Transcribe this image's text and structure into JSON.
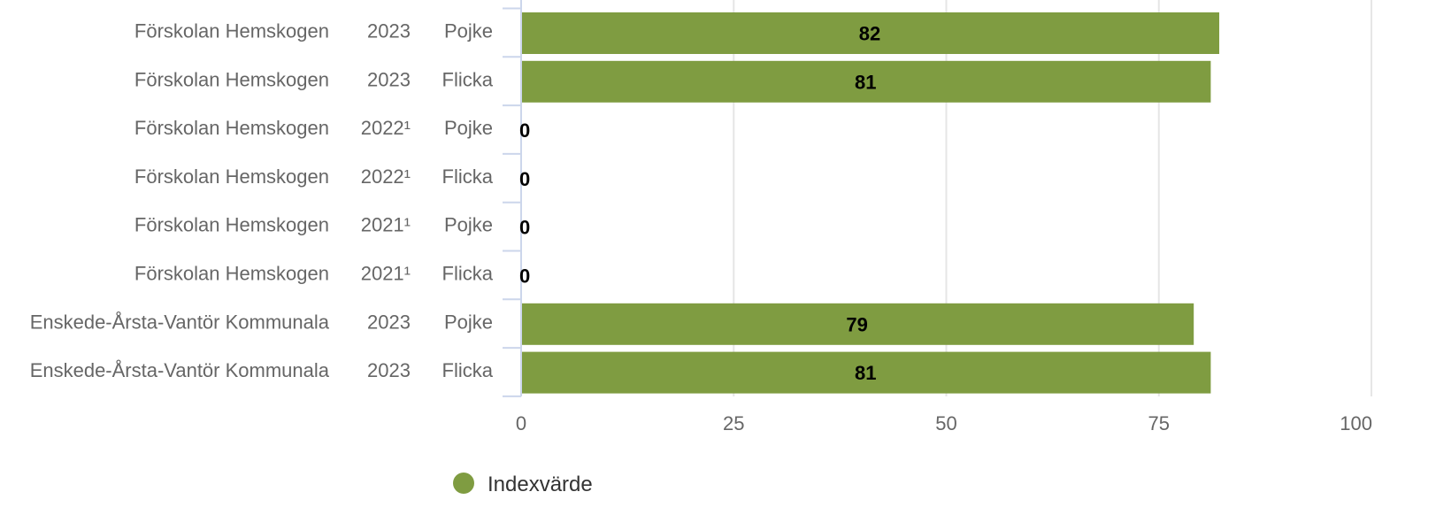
{
  "chart_data": {
    "type": "bar",
    "orientation": "horizontal",
    "categories": [
      {
        "school": "Förskolan Hemskogen",
        "year": "2023",
        "gender": "Pojke"
      },
      {
        "school": "Förskolan Hemskogen",
        "year": "2023",
        "gender": "Flicka"
      },
      {
        "school": "Förskolan Hemskogen",
        "year": "2022¹",
        "gender": "Pojke"
      },
      {
        "school": "Förskolan Hemskogen",
        "year": "2022¹",
        "gender": "Flicka"
      },
      {
        "school": "Förskolan Hemskogen",
        "year": "2021¹",
        "gender": "Pojke"
      },
      {
        "school": "Förskolan Hemskogen",
        "year": "2021¹",
        "gender": "Flicka"
      },
      {
        "school": "Enskede-Årsta-Vantör Kommunala",
        "year": "2023",
        "gender": "Pojke"
      },
      {
        "school": "Enskede-Årsta-Vantör Kommunala",
        "year": "2023",
        "gender": "Flicka"
      }
    ],
    "series": [
      {
        "name": "Indexvärde",
        "color": "#7f9c41",
        "values": [
          82,
          81,
          0,
          0,
          0,
          0,
          79,
          81
        ]
      }
    ],
    "xlim": [
      0,
      100
    ],
    "xticks": [
      0,
      25,
      50,
      75,
      100
    ],
    "grid": true,
    "legend_position": "bottom"
  }
}
